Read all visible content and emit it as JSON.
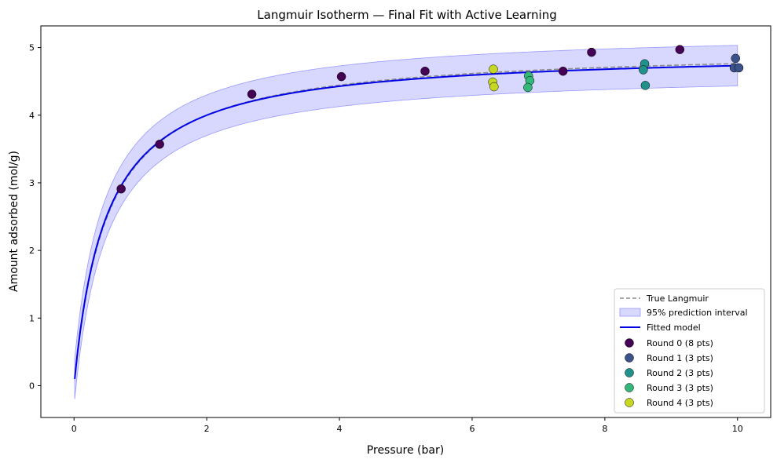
{
  "chart_data": {
    "type": "scatter",
    "title": "Langmuir Isotherm — Final Fit with Active Learning",
    "xlabel": "Pressure (bar)",
    "ylabel": "Amount adsorbed (mol/g)",
    "xlim": [
      -0.5,
      10.5
    ],
    "ylim": [
      -0.47,
      5.32
    ],
    "xticks": [
      0,
      2,
      4,
      6,
      8,
      10
    ],
    "yticks": [
      0,
      1,
      2,
      3,
      4,
      5
    ],
    "grid": false,
    "legend_position": "lower-right",
    "true_model": {
      "name": "True Langmuir",
      "qmax": 5.0,
      "K": 2.0,
      "color": "#8c8c8c",
      "style": "dashed"
    },
    "fitted_model": {
      "name": "Fitted model",
      "qmax": 4.96,
      "K": 2.08,
      "color": "#0000e6"
    },
    "interval": {
      "name": "95% prediction interval",
      "halfwidth": 0.3,
      "color": "#b8b8ff"
    },
    "curve_range": [
      0.01,
      10.0
    ],
    "series": [
      {
        "name": "Round 0 (8 pts)",
        "color": "#440154",
        "points": [
          [
            0.71,
            2.91
          ],
          [
            1.29,
            3.57
          ],
          [
            2.68,
            4.31
          ],
          [
            4.03,
            4.57
          ],
          [
            5.29,
            4.65
          ],
          [
            7.37,
            4.65
          ],
          [
            7.8,
            4.93
          ],
          [
            9.13,
            4.97
          ]
        ]
      },
      {
        "name": "Round 1 (3 pts)",
        "color": "#3b528b",
        "points": [
          [
            9.97,
            4.84
          ],
          [
            9.95,
            4.7
          ],
          [
            10.02,
            4.7
          ]
        ]
      },
      {
        "name": "Round 2 (3 pts)",
        "color": "#21918c",
        "points": [
          [
            8.6,
            4.76
          ],
          [
            8.58,
            4.67
          ],
          [
            8.61,
            4.44
          ]
        ]
      },
      {
        "name": "Round 3 (3 pts)",
        "color": "#35b779",
        "points": [
          [
            6.85,
            4.58
          ],
          [
            6.87,
            4.51
          ],
          [
            6.84,
            4.41
          ]
        ]
      },
      {
        "name": "Round 4 (3 pts)",
        "color": "#c7d823",
        "points": [
          [
            6.32,
            4.68
          ],
          [
            6.31,
            4.49
          ],
          [
            6.33,
            4.42
          ]
        ]
      }
    ]
  }
}
